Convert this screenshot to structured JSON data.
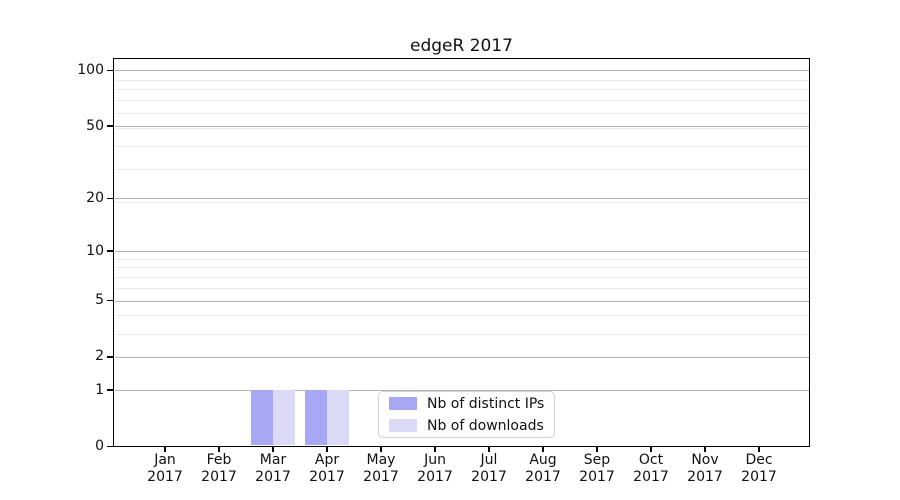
{
  "figure": {
    "background": "#ffffff",
    "text_color": "#111111",
    "spine_color": "#000000"
  },
  "chart_data": {
    "type": "bar",
    "title": "edgeR 2017",
    "categories": [
      "Jan 2017",
      "Feb 2017",
      "Mar 2017",
      "Apr 2017",
      "May 2017",
      "Jun 2017",
      "Jul 2017",
      "Aug 2017",
      "Sep 2017",
      "Oct 2017",
      "Nov 2017",
      "Dec 2017"
    ],
    "x_tick_line1": [
      "Jan",
      "Feb",
      "Mar",
      "Apr",
      "May",
      "Jun",
      "Jul",
      "Aug",
      "Sep",
      "Oct",
      "Nov",
      "Dec"
    ],
    "x_tick_line2": "2017",
    "series": [
      {
        "name": "Nb of distinct IPs",
        "color": "#a7a7f4",
        "values": [
          0,
          0,
          1,
          1,
          0,
          0,
          0,
          0,
          0,
          0,
          0,
          0
        ]
      },
      {
        "name": "Nb of downloads",
        "color": "#dbdbf8",
        "values": [
          0,
          0,
          1,
          1,
          0,
          0,
          0,
          0,
          0,
          0,
          0,
          0
        ]
      }
    ],
    "y_axis": {
      "scale": "log10(1+value)",
      "tick_values": [
        0,
        1,
        2,
        5,
        10,
        20,
        50,
        100
      ],
      "tick_labels": [
        "0",
        "1",
        "2",
        "5",
        "10",
        "20",
        "50",
        "100"
      ],
      "minor_gridline_values": [
        3,
        4,
        6,
        7,
        8,
        9,
        19,
        29,
        39,
        49,
        59,
        69,
        79,
        89
      ],
      "ylim": [
        0,
        116
      ]
    },
    "grid": {
      "axis": "y",
      "major_color": "#b4b4b4",
      "minor_color": "#eaeaea"
    },
    "legend": {
      "position": "lower center"
    }
  }
}
